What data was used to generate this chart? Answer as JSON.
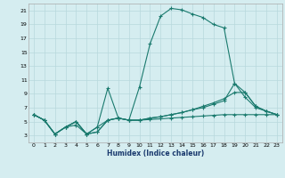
{
  "xlabel": "Humidex (Indice chaleur)",
  "xlim": [
    -0.5,
    23.5
  ],
  "ylim": [
    2,
    22
  ],
  "yticks": [
    3,
    5,
    7,
    9,
    11,
    13,
    15,
    17,
    19,
    21
  ],
  "xticks": [
    0,
    1,
    2,
    3,
    4,
    5,
    6,
    7,
    8,
    9,
    10,
    11,
    12,
    13,
    14,
    15,
    16,
    17,
    18,
    19,
    20,
    21,
    22,
    23
  ],
  "bg_color": "#d5edf0",
  "line_color": "#1a7a6e",
  "grid_color": "#b8d8dc",
  "line1_x": [
    0,
    1,
    2,
    3,
    4,
    5,
    6,
    7,
    8,
    9,
    10,
    11,
    12,
    13,
    14,
    15,
    16,
    17,
    18,
    19,
    20,
    21,
    22,
    23
  ],
  "line1_y": [
    6.0,
    5.2,
    3.2,
    4.2,
    5.0,
    3.2,
    3.5,
    5.2,
    5.5,
    5.2,
    10.0,
    16.2,
    20.2,
    21.3,
    21.1,
    20.5,
    20.0,
    19.0,
    18.5,
    10.5,
    9.2,
    7.2,
    6.5,
    6.0
  ],
  "line2_x": [
    0,
    1,
    2,
    3,
    4,
    5,
    6,
    7,
    8,
    9,
    10,
    11,
    12,
    13,
    14,
    15,
    16,
    17,
    18,
    19,
    20,
    21,
    22,
    23
  ],
  "line2_y": [
    6.0,
    5.2,
    3.2,
    4.2,
    4.5,
    3.2,
    3.5,
    5.2,
    5.5,
    5.2,
    5.2,
    5.5,
    5.7,
    6.0,
    6.3,
    6.7,
    7.2,
    7.7,
    8.3,
    9.2,
    9.2,
    7.2,
    6.5,
    6.0
  ],
  "line3_x": [
    0,
    1,
    2,
    3,
    4,
    5,
    6,
    7,
    8,
    9,
    10,
    11,
    12,
    13,
    14,
    15,
    16,
    17,
    18,
    19,
    20,
    21,
    22,
    23
  ],
  "line3_y": [
    6.0,
    5.2,
    3.2,
    4.2,
    5.0,
    3.2,
    4.2,
    9.8,
    5.5,
    5.2,
    5.2,
    5.5,
    5.7,
    6.0,
    6.3,
    6.7,
    7.0,
    7.5,
    8.0,
    10.5,
    8.5,
    7.0,
    6.5,
    6.0
  ],
  "line4_x": [
    0,
    1,
    2,
    3,
    4,
    5,
    6,
    7,
    8,
    9,
    10,
    11,
    12,
    13,
    14,
    15,
    16,
    17,
    18,
    19,
    20,
    21,
    22,
    23
  ],
  "line4_y": [
    6.0,
    5.2,
    3.2,
    4.2,
    5.0,
    3.2,
    4.2,
    5.2,
    5.5,
    5.2,
    5.2,
    5.3,
    5.4,
    5.5,
    5.6,
    5.7,
    5.8,
    5.9,
    6.0,
    6.0,
    6.0,
    6.0,
    6.0,
    6.0
  ]
}
